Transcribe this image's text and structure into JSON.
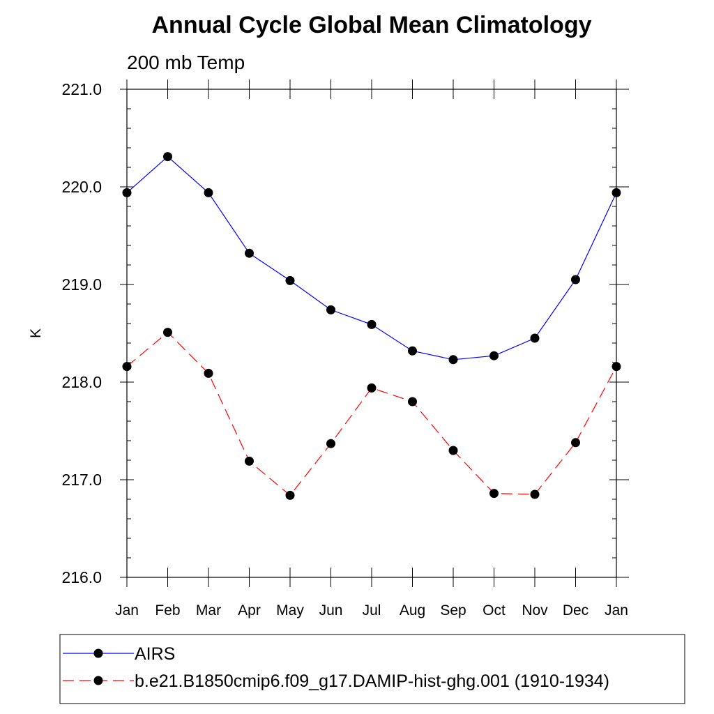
{
  "chart_data": {
    "type": "line",
    "title": "Annual Cycle Global Mean Climatology",
    "subtitle": "200 mb Temp",
    "xlabel": "",
    "ylabel": "K",
    "categories": [
      "Jan",
      "Feb",
      "Mar",
      "Apr",
      "May",
      "Jun",
      "Jul",
      "Aug",
      "Sep",
      "Oct",
      "Nov",
      "Dec",
      "Jan"
    ],
    "ylim": [
      216.0,
      221.0
    ],
    "yticks": [
      "216.0",
      "217.0",
      "218.0",
      "219.0",
      "220.0",
      "221.0"
    ],
    "grid": false,
    "legend_position": "bottom",
    "series": [
      {
        "name": "AIRS",
        "color": "#0000ff",
        "dash": "solid",
        "values": [
          219.94,
          220.31,
          219.94,
          219.32,
          219.04,
          218.74,
          218.59,
          218.32,
          218.23,
          218.27,
          218.45,
          219.05,
          219.94
        ]
      },
      {
        "name": "b.e21.B1850cmip6.f09_g17.DAMIP-hist-ghg.001 (1910-1934)",
        "color": "#ff0000",
        "dash": "dashed",
        "values": [
          218.16,
          218.51,
          218.09,
          217.19,
          216.84,
          217.37,
          217.94,
          217.8,
          217.3,
          216.86,
          216.85,
          217.38,
          218.16
        ]
      }
    ]
  }
}
